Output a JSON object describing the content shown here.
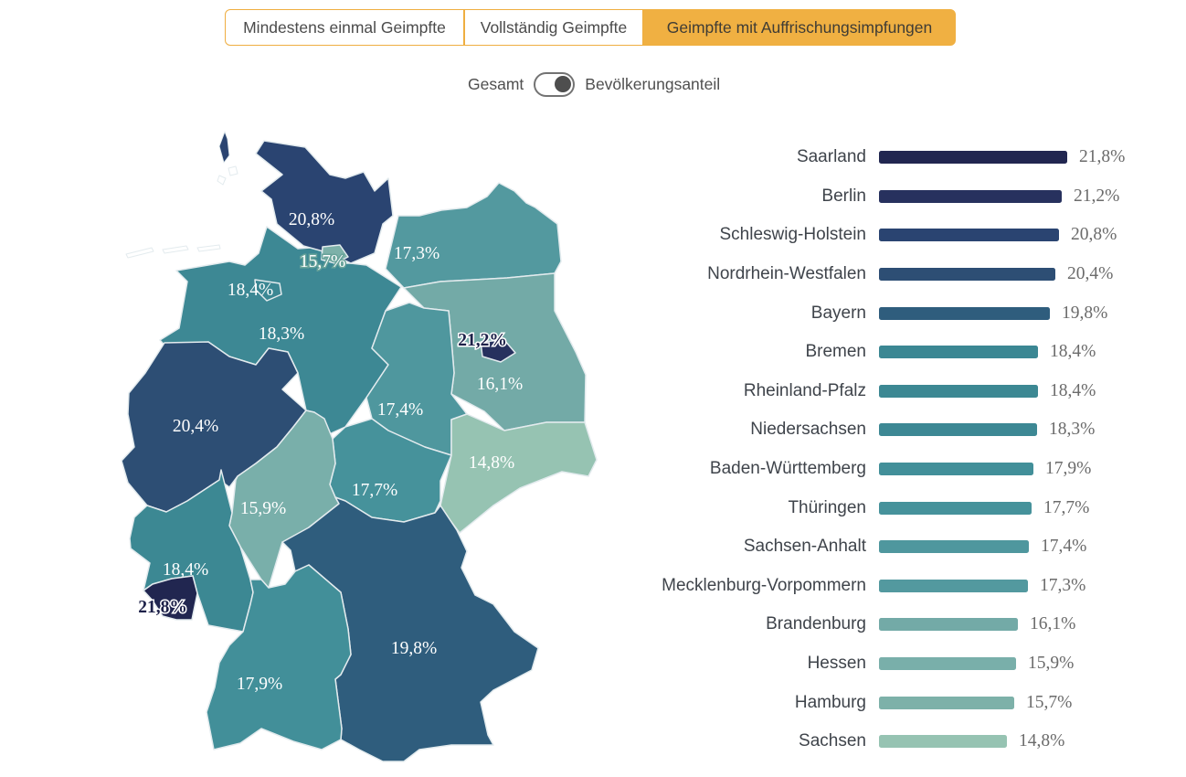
{
  "tabs": [
    {
      "label": "Mindestens einmal Geimpfte",
      "active": false
    },
    {
      "label": "Vollständig Geimpfte",
      "active": false
    },
    {
      "label": "Geimpfte mit Auffrischungsimpfungen",
      "active": true
    }
  ],
  "toggle": {
    "left_label": "Gesamt",
    "right_label": "Bevölkerungsanteil",
    "position": "right"
  },
  "colors": {
    "active_tab_bg": "#f0b042",
    "tab_border": "#efae41",
    "map_border": "#e3ebee",
    "value_text": "#6b6b6b",
    "state_name_text": "#3f444b"
  },
  "states": [
    {
      "key": "sl",
      "name": "Saarland",
      "value": 21.8,
      "display": "21,8%",
      "color": "#212650",
      "map_label": "dark-halo"
    },
    {
      "key": "be",
      "name": "Berlin",
      "value": 21.2,
      "display": "21,2%",
      "color": "#27315e",
      "map_label": "dark-halo"
    },
    {
      "key": "sh",
      "name": "Schleswig-Holstein",
      "value": 20.8,
      "display": "20,8%",
      "color": "#2a4471",
      "map_label": "light"
    },
    {
      "key": "nw",
      "name": "Nordrhein-Westfalen",
      "value": 20.4,
      "display": "20,4%",
      "color": "#2d4e74",
      "map_label": "light"
    },
    {
      "key": "by",
      "name": "Bayern",
      "value": 19.8,
      "display": "19,8%",
      "color": "#2f5d7d",
      "map_label": "light"
    },
    {
      "key": "hb",
      "name": "Bremen",
      "value": 18.4,
      "display": "18,4%",
      "color": "#3b8793",
      "map_label": "light"
    },
    {
      "key": "rp",
      "name": "Rheinland-Pfalz",
      "value": 18.4,
      "display": "18,4%",
      "color": "#3c8893",
      "map_label": "light"
    },
    {
      "key": "ni",
      "name": "Niedersachsen",
      "value": 18.3,
      "display": "18,3%",
      "color": "#3d8894",
      "map_label": "light"
    },
    {
      "key": "bw",
      "name": "Baden-Württemberg",
      "value": 17.9,
      "display": "17,9%",
      "color": "#428f99",
      "map_label": "light"
    },
    {
      "key": "th",
      "name": "Thüringen",
      "value": 17.7,
      "display": "17,7%",
      "color": "#46929b",
      "map_label": "light"
    },
    {
      "key": "st",
      "name": "Sachsen-Anhalt",
      "value": 17.4,
      "display": "17,4%",
      "color": "#4f979e",
      "map_label": "light"
    },
    {
      "key": "mv",
      "name": "Mecklenburg-Vorpommern",
      "value": 17.3,
      "display": "17,3%",
      "color": "#53999f",
      "map_label": "light"
    },
    {
      "key": "bb",
      "name": "Brandenburg",
      "value": 16.1,
      "display": "16,1%",
      "color": "#73aaa7",
      "map_label": "light"
    },
    {
      "key": "he",
      "name": "Hessen",
      "value": 15.9,
      "display": "15,9%",
      "color": "#79afaa",
      "map_label": "light"
    },
    {
      "key": "hh",
      "name": "Hamburg",
      "value": 15.7,
      "display": "15,7%",
      "color": "#7db1a9",
      "map_label": "light-halo"
    },
    {
      "key": "sn",
      "name": "Sachsen",
      "value": 14.8,
      "display": "14,8%",
      "color": "#96c3b2",
      "map_label": "light"
    }
  ],
  "chart_data": {
    "type": "bar",
    "orientation": "horizontal",
    "unit": "%",
    "decimal_separator": ",",
    "categories": [
      "Saarland",
      "Berlin",
      "Schleswig-Holstein",
      "Nordrhein-Westfalen",
      "Bayern",
      "Bremen",
      "Rheinland-Pfalz",
      "Niedersachsen",
      "Baden-Württemberg",
      "Thüringen",
      "Sachsen-Anhalt",
      "Mecklenburg-Vorpommern",
      "Brandenburg",
      "Hessen",
      "Hamburg",
      "Sachsen"
    ],
    "values": [
      21.8,
      21.2,
      20.8,
      20.4,
      19.8,
      18.4,
      18.4,
      18.3,
      17.9,
      17.7,
      17.4,
      17.3,
      16.1,
      15.9,
      15.7,
      14.8
    ],
    "display_values": [
      "21,8%",
      "21,2%",
      "20,8%",
      "20,4%",
      "19,8%",
      "18,4%",
      "18,4%",
      "18,3%",
      "17,9%",
      "17,7%",
      "17,4%",
      "17,3%",
      "16,1%",
      "15,9%",
      "15,7%",
      "14,8%"
    ],
    "bar_colors": [
      "#212650",
      "#27315e",
      "#2a4471",
      "#2d4e74",
      "#2f5d7d",
      "#3b8793",
      "#3c8893",
      "#3d8894",
      "#428f99",
      "#46929b",
      "#4f979e",
      "#53999f",
      "#73aaa7",
      "#79afaa",
      "#7db1a9",
      "#96c3b2"
    ],
    "value_range": [
      0,
      22
    ],
    "grid": false,
    "legend": false
  }
}
